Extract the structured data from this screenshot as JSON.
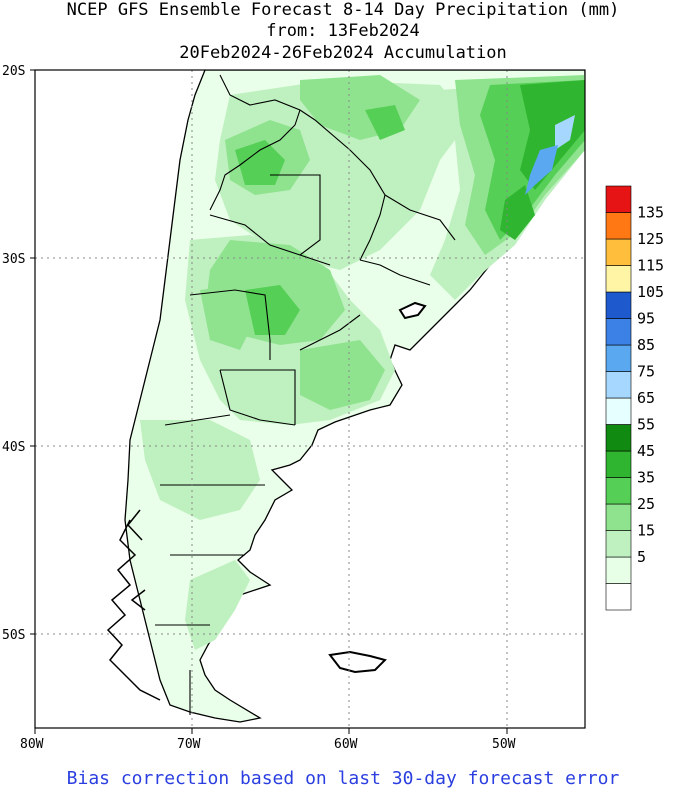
{
  "title": {
    "line1": "NCEP GFS Ensemble Forecast 8-14 Day Precipitation (mm)",
    "line2": "from: 13Feb2024",
    "line3": "20Feb2024-26Feb2024 Accumulation"
  },
  "footer": "Bias correction based on last 30-day forecast error",
  "axes": {
    "lat_labels": [
      "20S",
      "30S",
      "40S",
      "50S"
    ],
    "lon_labels": [
      "80W",
      "70W",
      "60W",
      "50W"
    ],
    "lat_values": [
      -20,
      -30,
      -40,
      -50
    ],
    "lon_values": [
      -80,
      -70,
      -60,
      -50
    ],
    "lat_range": [
      -55,
      -20
    ],
    "lon_range": [
      -80,
      -45
    ],
    "grid": "dotted"
  },
  "legend": {
    "bins": [
      {
        "label": "",
        "color": "#ffffff"
      },
      {
        "label": "5",
        "color": "#e6ffe6"
      },
      {
        "label": "15",
        "color": "#bff0bf"
      },
      {
        "label": "25",
        "color": "#8fe38f"
      },
      {
        "label": "35",
        "color": "#55cf55"
      },
      {
        "label": "45",
        "color": "#2fb52f"
      },
      {
        "label": "55",
        "color": "#118a11"
      },
      {
        "label": "65",
        "color": "#e6ffff"
      },
      {
        "label": "75",
        "color": "#a6d8ff"
      },
      {
        "label": "85",
        "color": "#5aa8f0"
      },
      {
        "label": "95",
        "color": "#3c82e6"
      },
      {
        "label": "105",
        "color": "#1e5acd"
      },
      {
        "label": "115",
        "color": "#fff5a5"
      },
      {
        "label": "125",
        "color": "#ffbe3c"
      },
      {
        "label": "135",
        "color": "#ff7814"
      },
      {
        "label": "",
        "color": "#e61414"
      }
    ]
  },
  "map_data": {
    "region": "South America (Argentina / Chile / Uruguay / southern Brazil)",
    "units": "mm",
    "precip_areas": [
      {
        "name": "southern-brazil-heavy",
        "level": 35
      },
      {
        "name": "brazil-coast-max",
        "level": 85
      },
      {
        "name": "paraguay-north",
        "level": 25
      },
      {
        "name": "central-argentina",
        "level": 25
      },
      {
        "name": "buenos-aires",
        "level": 25
      },
      {
        "name": "patagonia-west",
        "level": 15
      }
    ]
  }
}
